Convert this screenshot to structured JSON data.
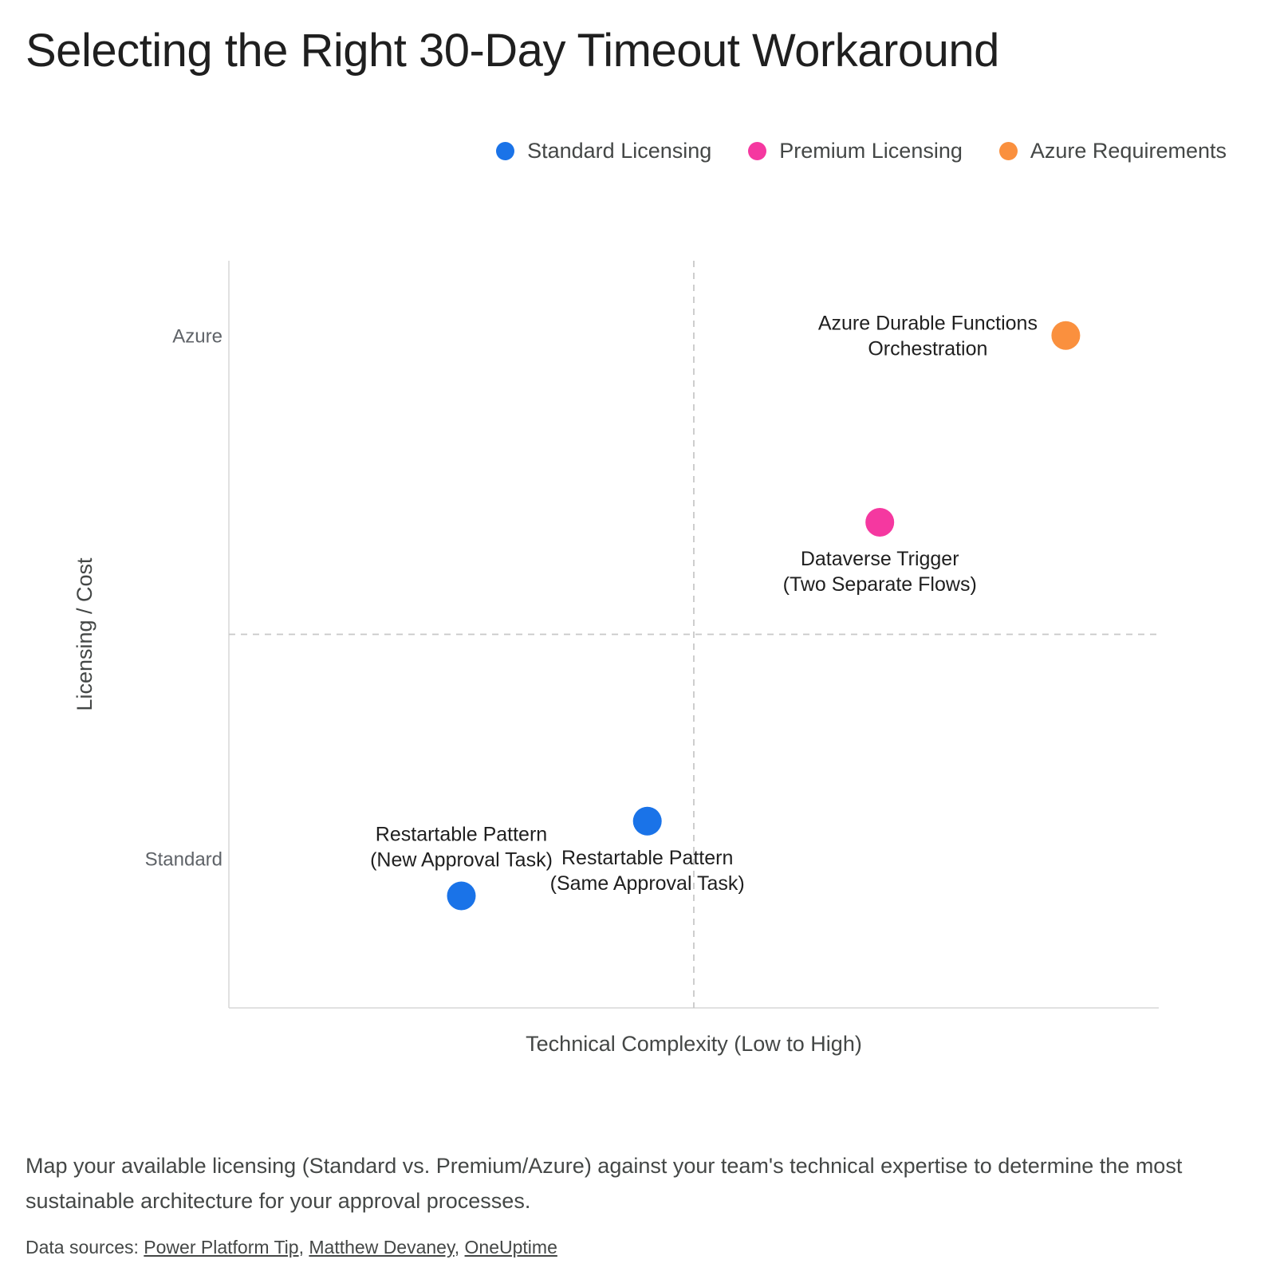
{
  "chart_data": {
    "type": "scatter",
    "title": "Selecting the Right 30-Day Timeout Workaround",
    "xlabel": "Technical Complexity (Low to High)",
    "ylabel": "Licensing / Cost",
    "xlim": [
      0,
      10
    ],
    "ylim": [
      0,
      10
    ],
    "y_ticks": [
      {
        "value": 2,
        "label": "Standard"
      },
      {
        "value": 9,
        "label": "Azure"
      }
    ],
    "quadrant_lines": {
      "x": 5,
      "y": 5
    },
    "grid": false,
    "legend_position": "top-right",
    "series": [
      {
        "name": "Standard Licensing",
        "color": "#1a73e8",
        "points": [
          {
            "x": 2.5,
            "y": 1.5,
            "label": [
              "Restartable Pattern",
              "(New Approval Task)"
            ],
            "label_position": "above"
          },
          {
            "x": 4.5,
            "y": 2.5,
            "label": [
              "Restartable Pattern",
              "(Same Approval Task)"
            ],
            "label_position": "below"
          }
        ]
      },
      {
        "name": "Premium Licensing",
        "color": "#f538a0",
        "points": [
          {
            "x": 7,
            "y": 6.5,
            "label": [
              "Dataverse Trigger",
              "(Two Separate Flows)"
            ],
            "label_position": "below"
          }
        ]
      },
      {
        "name": "Azure Requirements",
        "color": "#fa903e",
        "points": [
          {
            "x": 9,
            "y": 9,
            "label": [
              "Azure Durable Functions",
              "Orchestration"
            ],
            "label_position": "left"
          }
        ]
      }
    ]
  },
  "caption": "Map your available licensing (Standard vs. Premium/Azure) against your team's technical expertise to determine the most sustainable architecture for your approval processes.",
  "sources": {
    "prefix": "Data sources: ",
    "links": [
      "Power Platform Tip",
      "Matthew Devaney",
      "OneUptime"
    ]
  }
}
